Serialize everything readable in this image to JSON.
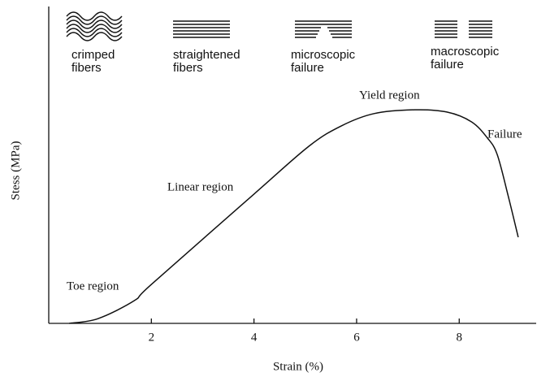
{
  "chart_data": {
    "type": "line",
    "x_label": "Strain (%)",
    "y_label": "Stess (MPa)",
    "xlim": [
      0,
      9.5
    ],
    "ylim": [
      0,
      100
    ],
    "xticks": [
      2,
      4,
      6,
      8
    ],
    "color": "#111111",
    "x": [
      0.4,
      0.96,
      1.67,
      2.0,
      4.0,
      5.07,
      5.7,
      6.34,
      7.13,
      7.76,
      8.24,
      8.55,
      8.74,
      8.95,
      9.15
    ],
    "values": [
      0,
      1.5,
      7.2,
      12.3,
      40.8,
      55.9,
      62.3,
      66.2,
      67.4,
      66.7,
      63.6,
      58.5,
      53.3,
      40.5,
      27.2
    ],
    "annotations": [
      "Toe region",
      "Linear region",
      "Yield region",
      "Failure"
    ],
    "icon_labels": [
      [
        "crimped",
        "fibers"
      ],
      [
        "straightened",
        "fibers"
      ],
      [
        "microscopic",
        "failure"
      ],
      [
        "macroscopic",
        "failure"
      ]
    ]
  }
}
